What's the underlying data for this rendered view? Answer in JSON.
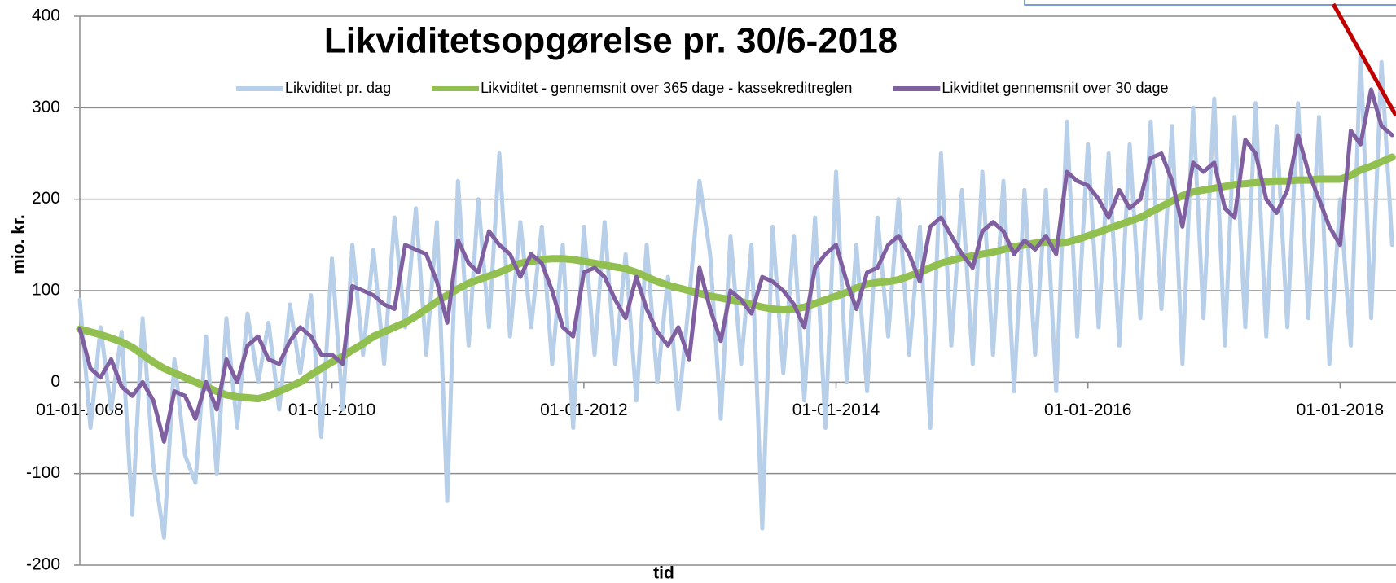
{
  "chart_data": {
    "type": "line",
    "title": "Likviditetsopgørelse pr. 30/6-2018",
    "y_label": "mio. kr.",
    "x_label": "tid",
    "x": [
      "2008-01-01",
      "2008-02-01",
      "2008-03-01",
      "2008-04-01",
      "2008-05-01",
      "2008-06-01",
      "2008-07-01",
      "2008-08-01",
      "2008-09-01",
      "2008-10-01",
      "2008-11-01",
      "2008-12-01",
      "2009-01-01",
      "2009-02-01",
      "2009-03-01",
      "2009-04-01",
      "2009-05-01",
      "2009-06-01",
      "2009-07-01",
      "2009-08-01",
      "2009-09-01",
      "2009-10-01",
      "2009-11-01",
      "2009-12-01",
      "2010-01-01",
      "2010-02-01",
      "2010-03-01",
      "2010-04-01",
      "2010-05-01",
      "2010-06-01",
      "2010-07-01",
      "2010-08-01",
      "2010-09-01",
      "2010-10-01",
      "2010-11-01",
      "2010-12-01",
      "2011-01-01",
      "2011-02-01",
      "2011-03-01",
      "2011-04-01",
      "2011-05-01",
      "2011-06-01",
      "2011-07-01",
      "2011-08-01",
      "2011-09-01",
      "2011-10-01",
      "2011-11-01",
      "2011-12-01",
      "2012-01-01",
      "2012-02-01",
      "2012-03-01",
      "2012-04-01",
      "2012-05-01",
      "2012-06-01",
      "2012-07-01",
      "2012-08-01",
      "2012-09-01",
      "2012-10-01",
      "2012-11-01",
      "2012-12-01",
      "2013-01-01",
      "2013-02-01",
      "2013-03-01",
      "2013-04-01",
      "2013-05-01",
      "2013-06-01",
      "2013-07-01",
      "2013-08-01",
      "2013-09-01",
      "2013-10-01",
      "2013-11-01",
      "2013-12-01",
      "2014-01-01",
      "2014-02-01",
      "2014-03-01",
      "2014-04-01",
      "2014-05-01",
      "2014-06-01",
      "2014-07-01",
      "2014-08-01",
      "2014-09-01",
      "2014-10-01",
      "2014-11-01",
      "2014-12-01",
      "2015-01-01",
      "2015-02-01",
      "2015-03-01",
      "2015-04-01",
      "2015-05-01",
      "2015-06-01",
      "2015-07-01",
      "2015-08-01",
      "2015-09-01",
      "2015-10-01",
      "2015-11-01",
      "2015-12-01",
      "2016-01-01",
      "2016-02-01",
      "2016-03-01",
      "2016-04-01",
      "2016-05-01",
      "2016-06-01",
      "2016-07-01",
      "2016-08-01",
      "2016-09-01",
      "2016-10-01",
      "2016-11-01",
      "2016-12-01",
      "2017-01-01",
      "2017-02-01",
      "2017-03-01",
      "2017-04-01",
      "2017-05-01",
      "2017-06-01",
      "2017-07-01",
      "2017-08-01",
      "2017-09-01",
      "2017-10-01",
      "2017-11-01",
      "2017-12-01",
      "2018-01-01",
      "2018-02-01",
      "2018-03-01",
      "2018-04-01",
      "2018-05-01",
      "2018-06-01"
    ],
    "series": [
      {
        "name": "Likviditet pr. dag",
        "color": "#b8cfea",
        "width": 5,
        "values": [
          90,
          -50,
          60,
          -30,
          55,
          -145,
          70,
          -90,
          -170,
          25,
          -80,
          -110,
          50,
          -100,
          70,
          -50,
          75,
          0,
          65,
          -30,
          85,
          10,
          95,
          -60,
          135,
          -30,
          150,
          30,
          145,
          20,
          180,
          60,
          190,
          30,
          175,
          -130,
          220,
          40,
          200,
          60,
          250,
          50,
          175,
          60,
          170,
          20,
          150,
          -50,
          170,
          30,
          175,
          20,
          140,
          -20,
          150,
          0,
          115,
          -30,
          90,
          220,
          140,
          -40,
          160,
          20,
          150,
          -160,
          170,
          10,
          160,
          -20,
          180,
          -50,
          230,
          0,
          150,
          -10,
          180,
          50,
          200,
          30,
          170,
          -50,
          250,
          40,
          210,
          20,
          230,
          30,
          220,
          -10,
          210,
          30,
          210,
          -10,
          285,
          50,
          260,
          60,
          250,
          40,
          260,
          70,
          285,
          80,
          280,
          20,
          300,
          70,
          310,
          40,
          290,
          60,
          305,
          50,
          280,
          60,
          305,
          70,
          290,
          20,
          200,
          40,
          360,
          70,
          350,
          150
        ]
      },
      {
        "name": "Likviditet - gennemsnit over 365 dage - kassekreditreglen",
        "color": "#92c050",
        "width": 9,
        "values": [
          58,
          55,
          52,
          48,
          44,
          38,
          30,
          22,
          15,
          10,
          5,
          0,
          -5,
          -10,
          -14,
          -16,
          -17,
          -18,
          -15,
          -10,
          -5,
          0,
          8,
          15,
          22,
          28,
          35,
          42,
          50,
          55,
          60,
          65,
          72,
          80,
          88,
          95,
          102,
          108,
          112,
          116,
          120,
          125,
          130,
          132,
          134,
          135,
          135,
          134,
          132,
          130,
          128,
          126,
          124,
          120,
          115,
          110,
          106,
          103,
          100,
          97,
          94,
          92,
          90,
          88,
          85,
          82,
          80,
          79,
          80,
          82,
          86,
          90,
          94,
          98,
          103,
          107,
          109,
          110,
          112,
          116,
          120,
          125,
          130,
          133,
          136,
          138,
          140,
          142,
          145,
          148,
          150,
          152,
          153,
          152,
          153,
          156,
          160,
          164,
          168,
          172,
          176,
          180,
          186,
          192,
          198,
          204,
          208,
          210,
          212,
          214,
          216,
          217,
          218,
          219,
          220,
          220,
          221,
          221,
          222,
          222,
          222,
          226,
          232,
          236,
          241,
          246
        ]
      },
      {
        "name": "Likviditet gennemsnit over 30 dage",
        "color": "#7f5fa0",
        "width": 5,
        "values": [
          58,
          15,
          5,
          25,
          -5,
          -15,
          0,
          -20,
          -65,
          -10,
          -15,
          -40,
          0,
          -30,
          25,
          0,
          40,
          50,
          25,
          20,
          45,
          60,
          50,
          30,
          30,
          20,
          105,
          100,
          95,
          85,
          80,
          150,
          145,
          140,
          110,
          65,
          155,
          130,
          120,
          165,
          150,
          140,
          115,
          140,
          130,
          100,
          60,
          50,
          120,
          125,
          115,
          90,
          70,
          115,
          80,
          55,
          40,
          60,
          25,
          125,
          80,
          45,
          100,
          90,
          75,
          115,
          110,
          100,
          85,
          60,
          125,
          140,
          150,
          110,
          80,
          120,
          125,
          150,
          160,
          140,
          110,
          170,
          180,
          160,
          140,
          125,
          165,
          175,
          165,
          140,
          155,
          145,
          160,
          140,
          230,
          220,
          215,
          200,
          180,
          210,
          190,
          200,
          245,
          250,
          220,
          170,
          240,
          230,
          240,
          190,
          180,
          265,
          250,
          200,
          185,
          210,
          270,
          230,
          200,
          170,
          150,
          275,
          260,
          320,
          280,
          270
        ]
      }
    ],
    "xlim": [
      "2008-01-01",
      "2018-06-12"
    ],
    "xticks": [
      {
        "value": "2008-01-01",
        "label": "01-01-2008"
      },
      {
        "value": "2010-01-01",
        "label": "01-01-2010"
      },
      {
        "value": "2012-01-01",
        "label": "01-01-2012"
      },
      {
        "value": "2014-01-01",
        "label": "01-01-2014"
      },
      {
        "value": "2016-01-01",
        "label": "01-01-2016"
      },
      {
        "value": "2018-01-01",
        "label": "01-01-2018"
      }
    ],
    "ylim": [
      -200,
      400
    ],
    "yticks": [
      -200,
      -100,
      0,
      100,
      200,
      300,
      400
    ],
    "grid": true
  }
}
